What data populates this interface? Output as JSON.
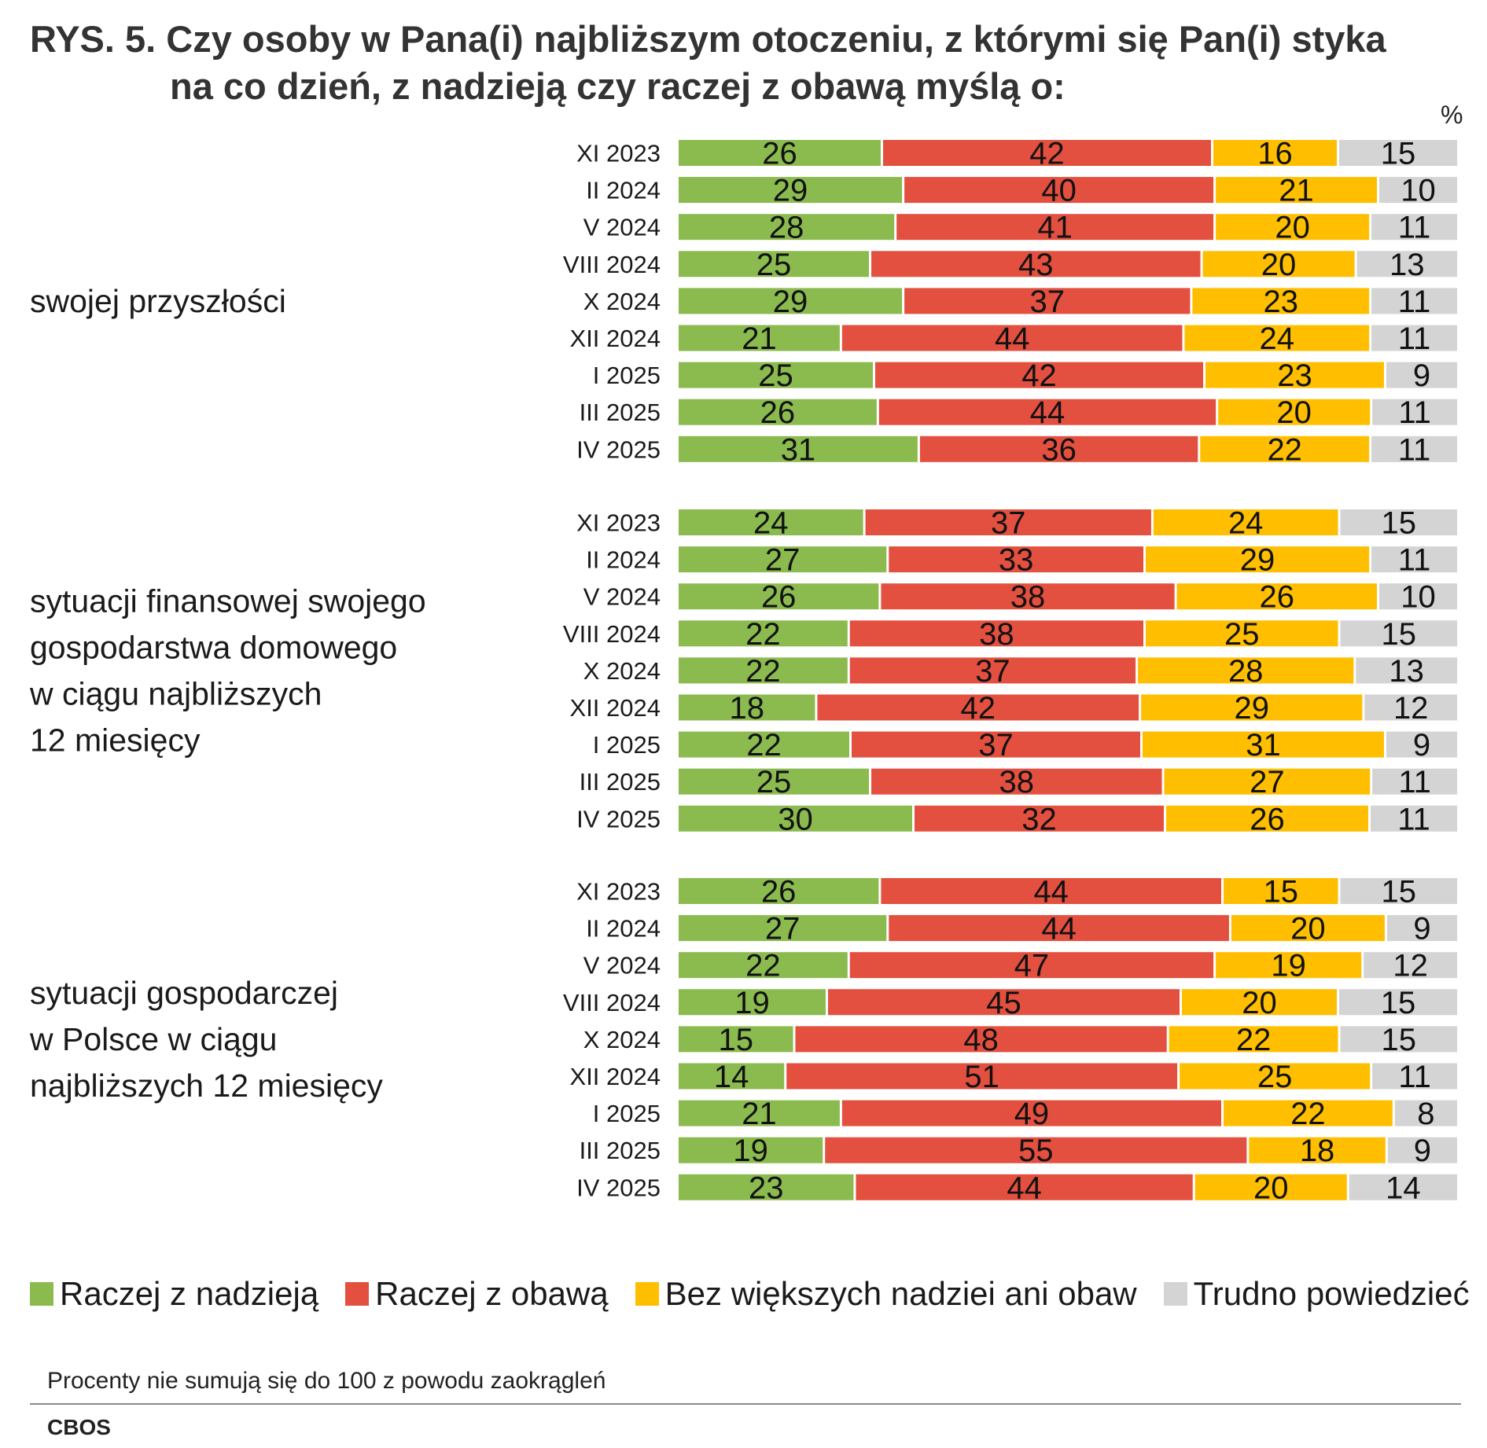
{
  "title_line1": "RYS. 5. Czy osoby w Pana(i) najbliższym otoczeniu, z którymi się Pan(i) styka",
  "title_line2": "na co dzień, z nadzieją czy raczej z obawą myślą o:",
  "unit": "%",
  "colors": {
    "hope": "#8bbb4f",
    "fear": "#e3503f",
    "neutral": "#ffbf00",
    "hard": "#d4d4d4"
  },
  "legend": [
    {
      "key": "hope",
      "label": "Raczej z nadzieją"
    },
    {
      "key": "fear",
      "label": "Raczej z obawą"
    },
    {
      "key": "neutral",
      "label": "Bez większych nadziei ani obaw"
    },
    {
      "key": "hard",
      "label": "Trudno powiedzieć"
    }
  ],
  "footnote": "Procenty nie sumują się do 100 z powodu zaokrągleń",
  "source": "CBOS",
  "chart_data": {
    "type": "bar",
    "orientation": "horizontal",
    "stacked": true,
    "xlim": [
      0,
      100
    ],
    "categories": [
      "XI 2023",
      "II 2024",
      "V 2024",
      "VIII 2024",
      "X 2024",
      "XII 2024",
      "I 2025",
      "III 2025",
      "IV 2025"
    ],
    "series_names": [
      "Raczej z nadzieją",
      "Raczej z obawą",
      "Bez większych nadziei ani obaw",
      "Trudno powiedzieć"
    ],
    "groups": [
      {
        "label": "swojej przyszłości",
        "rows": [
          [
            26,
            42,
            16,
            15
          ],
          [
            29,
            40,
            21,
            10
          ],
          [
            28,
            41,
            20,
            11
          ],
          [
            25,
            43,
            20,
            13
          ],
          [
            29,
            37,
            23,
            11
          ],
          [
            21,
            44,
            24,
            11
          ],
          [
            25,
            42,
            23,
            9
          ],
          [
            26,
            44,
            20,
            11
          ],
          [
            31,
            36,
            22,
            11
          ]
        ]
      },
      {
        "label": "sytuacji finansowej swojego gospodarstwa domowego w ciągu najbliższych 12 miesięcy",
        "label_lines": [
          "sytuacji finansowej swojego",
          "gospodarstwa domowego",
          "w ciągu najbliższych",
          "12 miesięcy"
        ],
        "rows": [
          [
            24,
            37,
            24,
            15
          ],
          [
            27,
            33,
            29,
            11
          ],
          [
            26,
            38,
            26,
            10
          ],
          [
            22,
            38,
            25,
            15
          ],
          [
            22,
            37,
            28,
            13
          ],
          [
            18,
            42,
            29,
            12
          ],
          [
            22,
            37,
            31,
            9
          ],
          [
            25,
            38,
            27,
            11
          ],
          [
            30,
            32,
            26,
            11
          ]
        ]
      },
      {
        "label": "sytuacji gospodarczej w Polsce w ciągu najbliższych 12 miesięcy",
        "label_lines": [
          "sytuacji gospodarczej",
          "w Polsce w ciągu",
          "najbliższych 12 miesięcy"
        ],
        "rows": [
          [
            26,
            44,
            15,
            15
          ],
          [
            27,
            44,
            20,
            9
          ],
          [
            22,
            47,
            19,
            12
          ],
          [
            19,
            45,
            20,
            15
          ],
          [
            15,
            48,
            22,
            15
          ],
          [
            14,
            51,
            25,
            11
          ],
          [
            21,
            49,
            22,
            8
          ],
          [
            19,
            55,
            18,
            9
          ],
          [
            23,
            44,
            20,
            14
          ]
        ]
      }
    ]
  }
}
